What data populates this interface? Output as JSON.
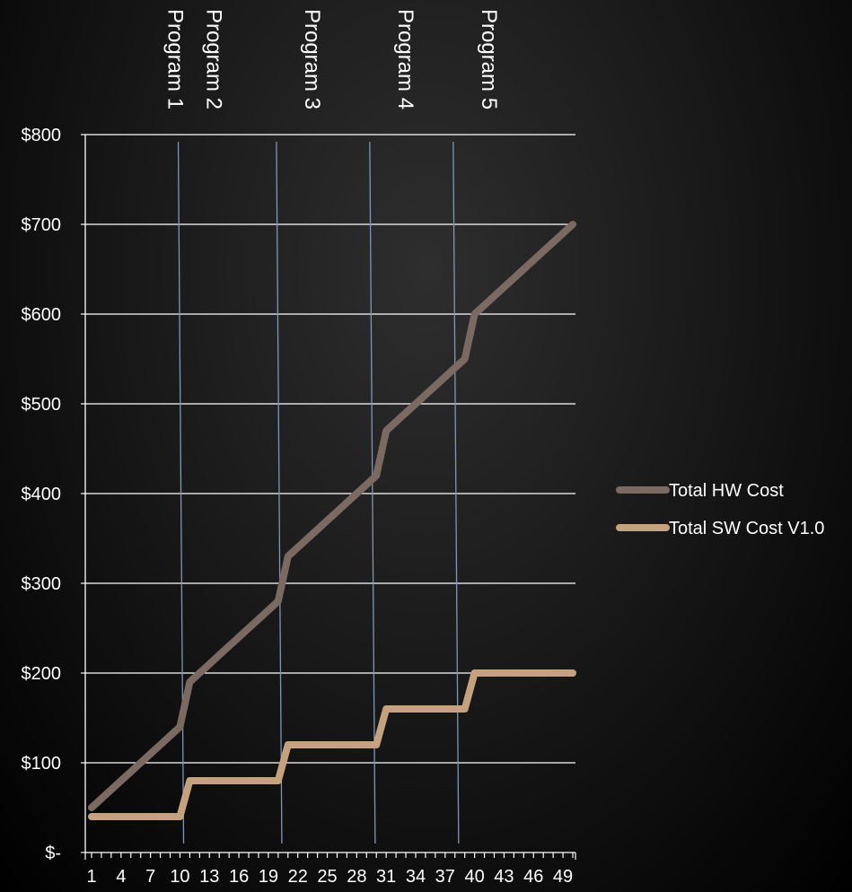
{
  "chart_data": {
    "type": "line",
    "categories": [
      1,
      2,
      3,
      4,
      5,
      6,
      7,
      8,
      9,
      10,
      11,
      12,
      13,
      14,
      15,
      16,
      17,
      18,
      19,
      20,
      21,
      22,
      23,
      24,
      25,
      26,
      27,
      28,
      29,
      30,
      31,
      32,
      33,
      34,
      35,
      36,
      37,
      38,
      39,
      40,
      41,
      42,
      43,
      44,
      45,
      46,
      47,
      48,
      49,
      50
    ],
    "x_tick_labels": [
      "1",
      "4",
      "7",
      "10",
      "13",
      "16",
      "19",
      "22",
      "25",
      "28",
      "31",
      "34",
      "37",
      "40",
      "43",
      "46",
      "49"
    ],
    "y_tick_labels": [
      "$-",
      "$100",
      "$200",
      "$300",
      "$400",
      "$500",
      "$600",
      "$700",
      "$800"
    ],
    "y_ticks": [
      0,
      100,
      200,
      300,
      400,
      500,
      600,
      700,
      800
    ],
    "ylim": [
      0,
      800
    ],
    "grid": true,
    "legend_position": "right",
    "series": [
      {
        "name": "Total HW Cost",
        "color": "#7a6a62",
        "values": [
          50,
          60,
          70,
          80,
          90,
          100,
          110,
          120,
          130,
          140,
          190,
          200,
          210,
          220,
          230,
          240,
          250,
          260,
          270,
          280,
          330,
          340,
          350,
          360,
          370,
          380,
          390,
          400,
          410,
          420,
          470,
          480,
          490,
          500,
          510,
          520,
          530,
          540,
          550,
          600,
          610,
          620,
          630,
          640,
          650,
          660,
          670,
          680,
          690,
          700
        ]
      },
      {
        "name": "Total SW Cost V1.0",
        "color": "#c4a27e",
        "values": [
          40,
          40,
          40,
          40,
          40,
          40,
          40,
          40,
          40,
          40,
          80,
          80,
          80,
          80,
          80,
          80,
          80,
          80,
          80,
          80,
          120,
          120,
          120,
          120,
          120,
          120,
          120,
          120,
          120,
          120,
          160,
          160,
          160,
          160,
          160,
          160,
          160,
          160,
          160,
          200,
          200,
          200,
          200,
          200,
          200,
          200,
          200,
          200,
          200,
          200
        ]
      }
    ],
    "annotations": [
      {
        "label": "Program 1",
        "x": 4.6
      },
      {
        "label": "Program 2",
        "x": 10.1
      },
      {
        "label": "Program 3",
        "x": 20.1
      },
      {
        "label": "Program 4",
        "x": 29.6
      },
      {
        "label": "Program 5",
        "x": 38.1
      }
    ],
    "gridline_color": "#ffffff",
    "marker_line_color": "#7f97b0"
  }
}
